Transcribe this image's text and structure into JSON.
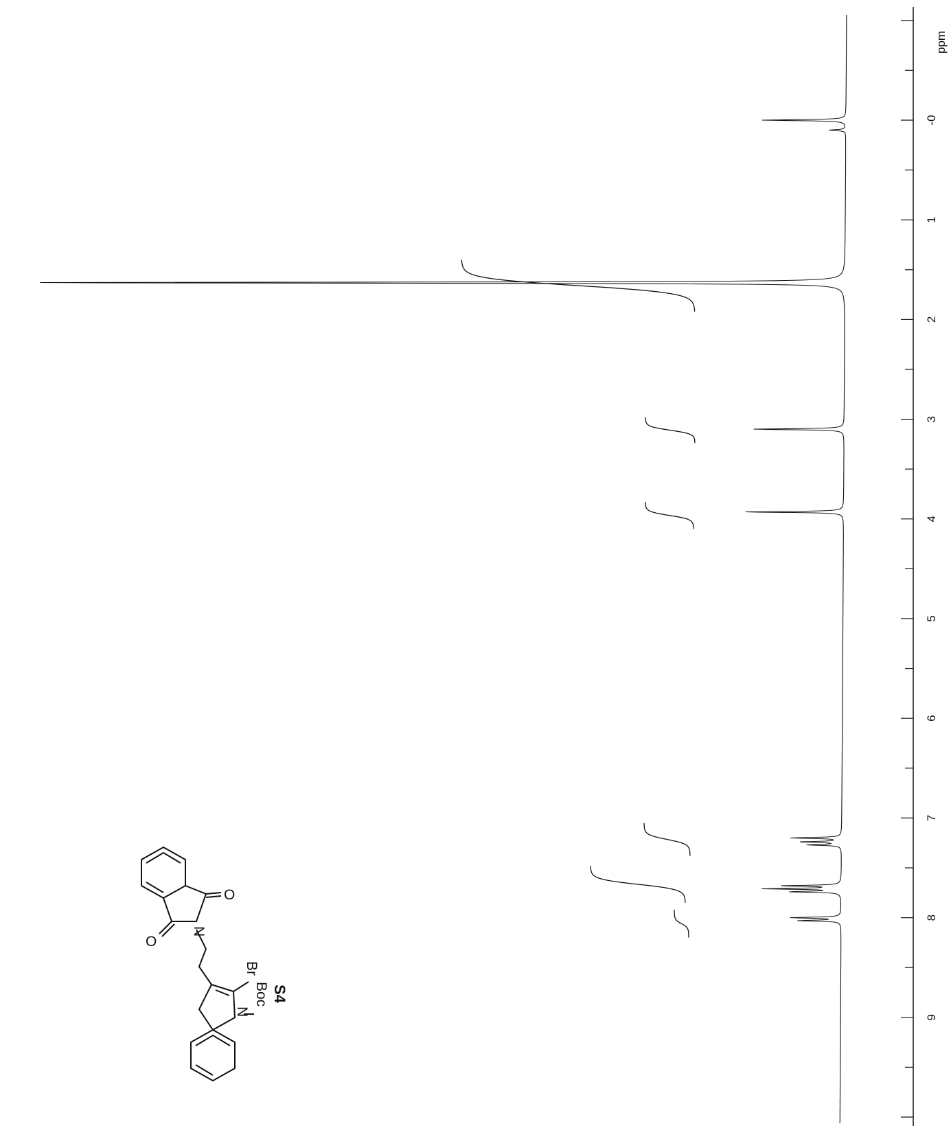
{
  "chart_data": {
    "type": "line",
    "orientation": "rotated-90",
    "x_axis": {
      "unit_label": "ppm",
      "ticks": [
        0,
        1,
        2,
        3,
        4,
        5,
        6,
        7,
        8,
        9
      ],
      "tick_labels": [
        "-0",
        "1",
        "2",
        "3",
        "4",
        "5",
        "6",
        "7",
        "8",
        "9"
      ],
      "range": [
        -1,
        10
      ]
    },
    "peaks": [
      {
        "ppm": 0.0,
        "height": 0.1
      },
      {
        "ppm": 0.1,
        "height": 0.02
      },
      {
        "ppm": 1.63,
        "height": 1.0
      },
      {
        "ppm": 3.1,
        "height": 0.11
      },
      {
        "ppm": 3.93,
        "height": 0.12
      },
      {
        "ppm": 7.2,
        "height": 0.06
      },
      {
        "ppm": 7.24,
        "height": 0.05
      },
      {
        "ppm": 7.27,
        "height": 0.04
      },
      {
        "ppm": 7.68,
        "height": 0.07
      },
      {
        "ppm": 7.71,
        "height": 0.09
      },
      {
        "ppm": 7.74,
        "height": 0.06
      },
      {
        "ppm": 8.0,
        "height": 0.06
      },
      {
        "ppm": 8.03,
        "height": 0.05
      }
    ],
    "integral_groups": [
      {
        "start": 1.4,
        "end": 1.92
      },
      {
        "start": 2.98,
        "end": 3.24
      },
      {
        "start": 3.83,
        "end": 4.1
      },
      {
        "start": 7.05,
        "end": 7.38
      },
      {
        "start": 7.48,
        "end": 7.85
      },
      {
        "start": 7.92,
        "end": 8.2
      }
    ]
  },
  "structure": {
    "compound_label": "S4",
    "atoms": {
      "br": "Br",
      "n_indole": "N",
      "boc": "Boc",
      "n_imide": "N",
      "o1": "O",
      "o2": "O"
    }
  }
}
